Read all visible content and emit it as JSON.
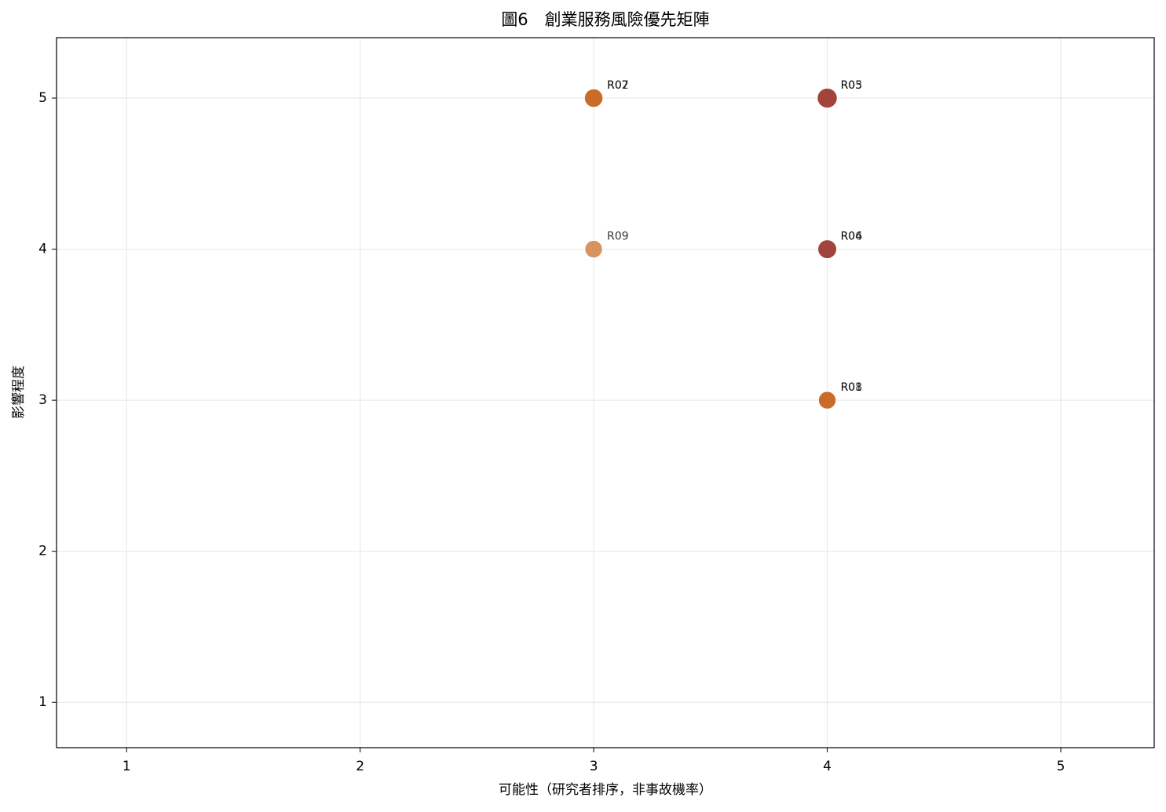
{
  "chart_data": {
    "type": "scatter",
    "title": "圖6　創業服務風險優先矩陣",
    "x_label": "可能性（研究者排序，非事故機率）",
    "y_label": "影響程度",
    "labels": [
      "R01",
      "R02",
      "R03",
      "R04",
      "R05",
      "R06",
      "R07",
      "R08",
      "R09"
    ],
    "x": [
      4,
      3,
      4,
      4,
      4,
      4,
      3,
      4,
      3
    ],
    "values": [
      3,
      5,
      5,
      4,
      5,
      4,
      5,
      3,
      4
    ],
    "colors": [
      "#c96a28",
      "#c96a28",
      "#a2433b",
      "#a2433b",
      "#a2433b",
      "#a2433b",
      "#c96a28",
      "#c96a28",
      "#d38850"
    ],
    "xlim": [
      0.7,
      5.4
    ],
    "ylim": [
      0.7,
      5.4
    ],
    "xticks": [
      1,
      2,
      3,
      4,
      5
    ],
    "yticks": [
      1,
      2,
      3,
      4,
      5
    ],
    "grid": true
  }
}
